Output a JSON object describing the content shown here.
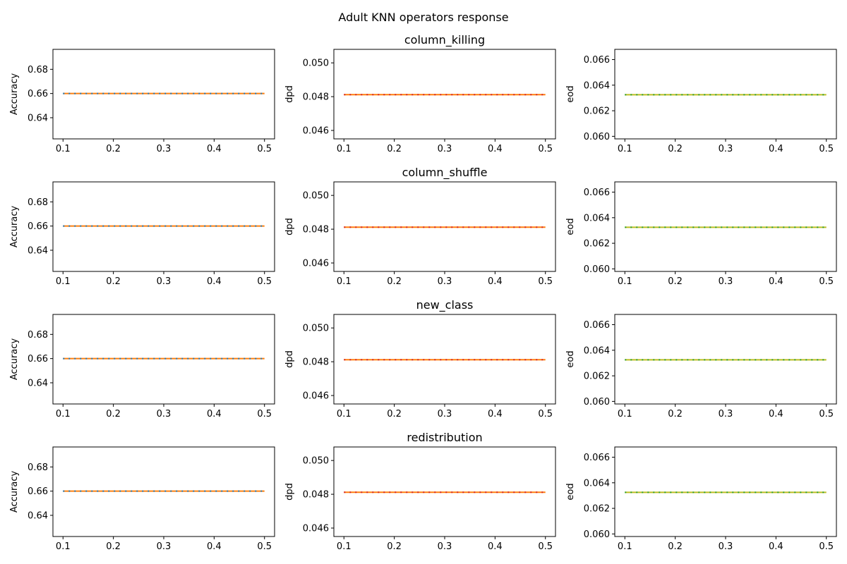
{
  "figure": {
    "title": "Adult KNN operators response"
  },
  "chart_data": [
    {
      "type": "line",
      "row": 0,
      "col": 0,
      "row_title": "column_killing",
      "ylabel": "Accuracy",
      "xlim": [
        0.08,
        0.52
      ],
      "ylim": [
        0.6225,
        0.6965
      ],
      "xticks": [
        0.1,
        0.2,
        0.3,
        0.4,
        0.5
      ],
      "yticks": [
        0.64,
        0.66,
        0.68
      ],
      "ytick_labels": [
        "0.64",
        "0.66",
        "0.68"
      ],
      "x": [
        0.1,
        0.5
      ],
      "series": [
        {
          "values": [
            0.66,
            0.66
          ],
          "color": "#ff7f0e",
          "dashes": "#1f77b4"
        }
      ]
    },
    {
      "type": "line",
      "row": 0,
      "col": 1,
      "row_title": "column_killing",
      "ylabel": "dpd",
      "xlim": [
        0.08,
        0.52
      ],
      "ylim": [
        0.0455,
        0.0508
      ],
      "xticks": [
        0.1,
        0.2,
        0.3,
        0.4,
        0.5
      ],
      "yticks": [
        0.046,
        0.048,
        0.05
      ],
      "ytick_labels": [
        "0.046",
        "0.048",
        "0.050"
      ],
      "x": [
        0.1,
        0.5
      ],
      "series": [
        {
          "values": [
            0.04812,
            0.04812
          ],
          "color": "#ff7f0e",
          "dashes": "#d62728"
        }
      ]
    },
    {
      "type": "line",
      "row": 0,
      "col": 2,
      "row_title": "column_killing",
      "ylabel": "eod",
      "xlim": [
        0.08,
        0.52
      ],
      "ylim": [
        0.0598,
        0.0668
      ],
      "xticks": [
        0.1,
        0.2,
        0.3,
        0.4,
        0.5
      ],
      "yticks": [
        0.06,
        0.062,
        0.064,
        0.066
      ],
      "ytick_labels": [
        "0.060",
        "0.062",
        "0.064",
        "0.066"
      ],
      "x": [
        0.1,
        0.5
      ],
      "series": [
        {
          "values": [
            0.06325,
            0.06325
          ],
          "color": "#bcbd22",
          "dashes": "#2ca02c"
        }
      ]
    },
    {
      "type": "line",
      "row": 1,
      "col": 0,
      "row_title": "column_shuffle",
      "ylabel": "Accuracy",
      "xlim": [
        0.08,
        0.52
      ],
      "ylim": [
        0.6225,
        0.6965
      ],
      "xticks": [
        0.1,
        0.2,
        0.3,
        0.4,
        0.5
      ],
      "yticks": [
        0.64,
        0.66,
        0.68
      ],
      "ytick_labels": [
        "0.64",
        "0.66",
        "0.68"
      ],
      "x": [
        0.1,
        0.5
      ],
      "series": [
        {
          "values": [
            0.66,
            0.66
          ],
          "color": "#ff7f0e",
          "dashes": "#1f77b4"
        }
      ]
    },
    {
      "type": "line",
      "row": 1,
      "col": 1,
      "row_title": "column_shuffle",
      "ylabel": "dpd",
      "xlim": [
        0.08,
        0.52
      ],
      "ylim": [
        0.0455,
        0.0508
      ],
      "xticks": [
        0.1,
        0.2,
        0.3,
        0.4,
        0.5
      ],
      "yticks": [
        0.046,
        0.048,
        0.05
      ],
      "ytick_labels": [
        "0.046",
        "0.048",
        "0.050"
      ],
      "x": [
        0.1,
        0.5
      ],
      "series": [
        {
          "values": [
            0.04812,
            0.04812
          ],
          "color": "#ff7f0e",
          "dashes": "#d62728"
        }
      ]
    },
    {
      "type": "line",
      "row": 1,
      "col": 2,
      "row_title": "column_shuffle",
      "ylabel": "eod",
      "xlim": [
        0.08,
        0.52
      ],
      "ylim": [
        0.0598,
        0.0668
      ],
      "xticks": [
        0.1,
        0.2,
        0.3,
        0.4,
        0.5
      ],
      "yticks": [
        0.06,
        0.062,
        0.064,
        0.066
      ],
      "ytick_labels": [
        "0.060",
        "0.062",
        "0.064",
        "0.066"
      ],
      "x": [
        0.1,
        0.5
      ],
      "series": [
        {
          "values": [
            0.06325,
            0.06325
          ],
          "color": "#bcbd22",
          "dashes": "#2ca02c"
        }
      ]
    },
    {
      "type": "line",
      "row": 2,
      "col": 0,
      "row_title": "new_class",
      "ylabel": "Accuracy",
      "xlim": [
        0.08,
        0.52
      ],
      "ylim": [
        0.6225,
        0.6965
      ],
      "xticks": [
        0.1,
        0.2,
        0.3,
        0.4,
        0.5
      ],
      "yticks": [
        0.64,
        0.66,
        0.68
      ],
      "ytick_labels": [
        "0.64",
        "0.66",
        "0.68"
      ],
      "x": [
        0.1,
        0.5
      ],
      "series": [
        {
          "values": [
            0.66,
            0.66
          ],
          "color": "#ff7f0e",
          "dashes": "#1f77b4"
        }
      ]
    },
    {
      "type": "line",
      "row": 2,
      "col": 1,
      "row_title": "new_class",
      "ylabel": "dpd",
      "xlim": [
        0.08,
        0.52
      ],
      "ylim": [
        0.0455,
        0.0508
      ],
      "xticks": [
        0.1,
        0.2,
        0.3,
        0.4,
        0.5
      ],
      "yticks": [
        0.046,
        0.048,
        0.05
      ],
      "ytick_labels": [
        "0.046",
        "0.048",
        "0.050"
      ],
      "x": [
        0.1,
        0.5
      ],
      "series": [
        {
          "values": [
            0.04812,
            0.04812
          ],
          "color": "#ff7f0e",
          "dashes": "#d62728"
        }
      ]
    },
    {
      "type": "line",
      "row": 2,
      "col": 2,
      "row_title": "new_class",
      "ylabel": "eod",
      "xlim": [
        0.08,
        0.52
      ],
      "ylim": [
        0.0598,
        0.0668
      ],
      "xticks": [
        0.1,
        0.2,
        0.3,
        0.4,
        0.5
      ],
      "yticks": [
        0.06,
        0.062,
        0.064,
        0.066
      ],
      "ytick_labels": [
        "0.060",
        "0.062",
        "0.064",
        "0.066"
      ],
      "x": [
        0.1,
        0.5
      ],
      "series": [
        {
          "values": [
            0.06325,
            0.06325
          ],
          "color": "#bcbd22",
          "dashes": "#2ca02c"
        }
      ]
    },
    {
      "type": "line",
      "row": 3,
      "col": 0,
      "row_title": "redistribution",
      "ylabel": "Accuracy",
      "xlim": [
        0.08,
        0.52
      ],
      "ylim": [
        0.6225,
        0.6965
      ],
      "xticks": [
        0.1,
        0.2,
        0.3,
        0.4,
        0.5
      ],
      "yticks": [
        0.64,
        0.66,
        0.68
      ],
      "ytick_labels": [
        "0.64",
        "0.66",
        "0.68"
      ],
      "x": [
        0.1,
        0.5
      ],
      "series": [
        {
          "values": [
            0.66,
            0.66
          ],
          "color": "#ff7f0e",
          "dashes": "#1f77b4"
        }
      ]
    },
    {
      "type": "line",
      "row": 3,
      "col": 1,
      "row_title": "redistribution",
      "ylabel": "dpd",
      "xlim": [
        0.08,
        0.52
      ],
      "ylim": [
        0.0455,
        0.0508
      ],
      "xticks": [
        0.1,
        0.2,
        0.3,
        0.4,
        0.5
      ],
      "yticks": [
        0.046,
        0.048,
        0.05
      ],
      "ytick_labels": [
        "0.046",
        "0.048",
        "0.050"
      ],
      "x": [
        0.1,
        0.5
      ],
      "series": [
        {
          "values": [
            0.04812,
            0.04812
          ],
          "color": "#ff7f0e",
          "dashes": "#d62728"
        }
      ]
    },
    {
      "type": "line",
      "row": 3,
      "col": 2,
      "row_title": "redistribution",
      "ylabel": "eod",
      "xlim": [
        0.08,
        0.52
      ],
      "ylim": [
        0.0598,
        0.0668
      ],
      "xticks": [
        0.1,
        0.2,
        0.3,
        0.4,
        0.5
      ],
      "yticks": [
        0.06,
        0.062,
        0.064,
        0.066
      ],
      "ytick_labels": [
        "0.060",
        "0.062",
        "0.064",
        "0.066"
      ],
      "x": [
        0.1,
        0.5
      ],
      "series": [
        {
          "values": [
            0.06325,
            0.06325
          ],
          "color": "#bcbd22",
          "dashes": "#2ca02c"
        }
      ]
    }
  ]
}
